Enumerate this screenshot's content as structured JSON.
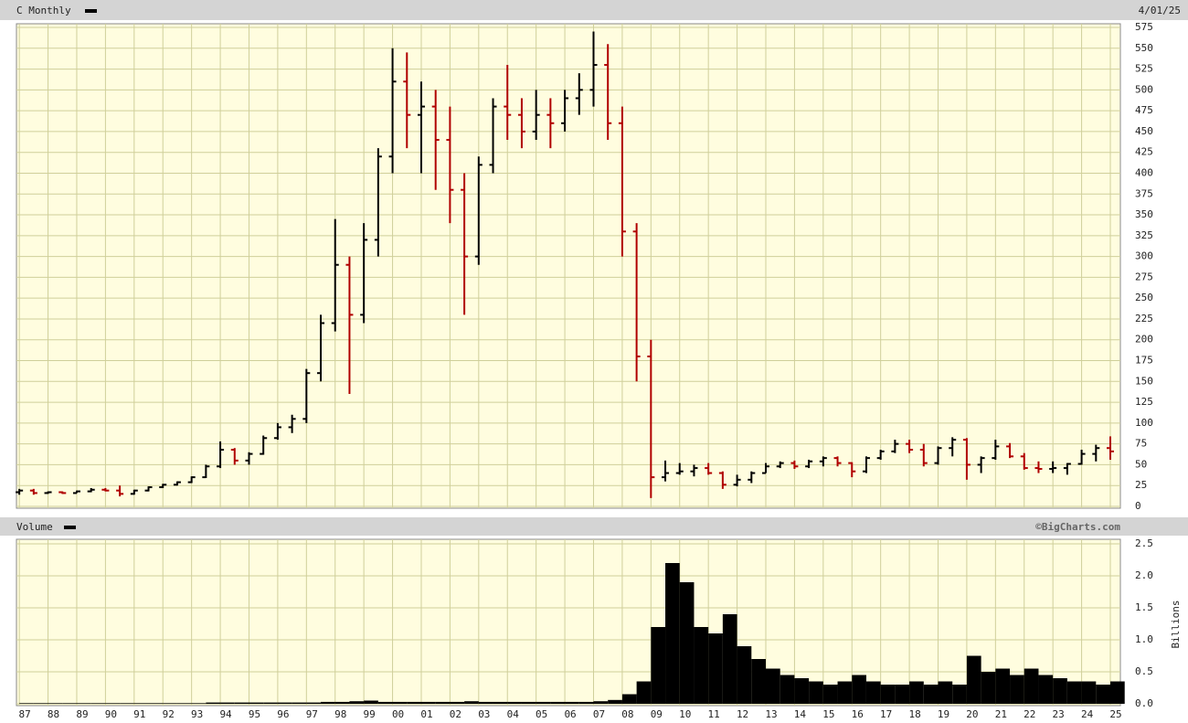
{
  "chart_data": [
    {
      "type": "ohlc",
      "title": "C Monthly",
      "date": "4/01/25",
      "up_color": "#000000",
      "down_color": "#b00000",
      "grid": true,
      "x": [
        1987,
        1987.5,
        1988,
        1988.5,
        1989,
        1989.5,
        1990,
        1990.5,
        1991,
        1991.5,
        1992,
        1992.5,
        1993,
        1993.5,
        1994,
        1994.5,
        1995,
        1995.5,
        1996,
        1996.5,
        1997,
        1997.5,
        1998,
        1998.5,
        1999,
        1999.5,
        2000,
        2000.5,
        2001,
        2001.5,
        2002,
        2002.5,
        2003,
        2003.5,
        2004,
        2004.5,
        2005,
        2005.5,
        2006,
        2006.5,
        2007,
        2007.5,
        2008,
        2008.5,
        2009,
        2009.5,
        2010,
        2010.5,
        2011,
        2011.5,
        2012,
        2012.5,
        2013,
        2013.5,
        2014,
        2014.5,
        2015,
        2015.5,
        2016,
        2016.5,
        2017,
        2017.5,
        2018,
        2018.5,
        2019,
        2019.5,
        2020,
        2020.5,
        2021,
        2021.5,
        2022,
        2022.5,
        2023,
        2023.5,
        2024,
        2024.5,
        2025
      ],
      "open": [
        17,
        19,
        16,
        17,
        16,
        18,
        20,
        19,
        15,
        19,
        23,
        26,
        29,
        35,
        48,
        68,
        55,
        63,
        82,
        95,
        105,
        160,
        220,
        290,
        230,
        320,
        420,
        510,
        470,
        480,
        440,
        380,
        300,
        410,
        480,
        470,
        450,
        470,
        460,
        490,
        500,
        530,
        460,
        330,
        180,
        35,
        40,
        42,
        46,
        40,
        26,
        32,
        40,
        48,
        52,
        48,
        54,
        58,
        52,
        42,
        58,
        66,
        75,
        68,
        52,
        70,
        80,
        50,
        58,
        72,
        60,
        46,
        45,
        46,
        51,
        63,
        70
      ],
      "high": [
        21,
        21,
        18,
        18,
        19,
        22,
        22,
        25,
        20,
        24,
        27,
        30,
        36,
        50,
        78,
        70,
        65,
        85,
        100,
        110,
        165,
        230,
        345,
        300,
        340,
        430,
        550,
        545,
        510,
        500,
        480,
        400,
        420,
        490,
        530,
        490,
        500,
        490,
        500,
        520,
        570,
        555,
        480,
        340,
        200,
        55,
        52,
        50,
        52,
        42,
        38,
        42,
        52,
        54,
        55,
        56,
        60,
        60,
        53,
        60,
        68,
        80,
        80,
        75,
        72,
        83,
        82,
        60,
        80,
        76,
        64,
        54,
        54,
        52,
        68,
        74,
        84
      ],
      "low": [
        14,
        14,
        15,
        15,
        16,
        17,
        18,
        12,
        14,
        18,
        22,
        25,
        28,
        34,
        46,
        50,
        50,
        62,
        80,
        88,
        100,
        150,
        210,
        135,
        220,
        300,
        400,
        430,
        400,
        380,
        340,
        230,
        290,
        400,
        440,
        430,
        440,
        430,
        450,
        470,
        480,
        440,
        300,
        150,
        10,
        30,
        38,
        36,
        38,
        21,
        24,
        28,
        40,
        46,
        45,
        46,
        48,
        48,
        35,
        40,
        56,
        64,
        64,
        48,
        50,
        60,
        32,
        40,
        56,
        58,
        44,
        40,
        40,
        38,
        50,
        54,
        56
      ],
      "close": [
        19,
        16,
        17,
        16,
        18,
        20,
        19,
        15,
        19,
        23,
        26,
        29,
        35,
        48,
        68,
        55,
        63,
        82,
        95,
        105,
        160,
        220,
        290,
        230,
        320,
        420,
        510,
        470,
        480,
        440,
        380,
        300,
        410,
        480,
        470,
        450,
        470,
        460,
        490,
        500,
        530,
        460,
        330,
        180,
        35,
        40,
        42,
        46,
        40,
        26,
        32,
        40,
        48,
        52,
        48,
        54,
        58,
        52,
        42,
        58,
        66,
        75,
        68,
        52,
        70,
        80,
        50,
        58,
        72,
        60,
        46,
        45,
        46,
        51,
        63,
        70,
        66
      ],
      "xlim": [
        1986.9,
        2025.35
      ],
      "xticks": [
        1987,
        1988,
        1989,
        1990,
        1991,
        1992,
        1993,
        1994,
        1995,
        1996,
        1997,
        1998,
        1999,
        2000,
        2001,
        2002,
        2003,
        2004,
        2005,
        2006,
        2007,
        2008,
        2009,
        2010,
        2011,
        2012,
        2013,
        2014,
        2015,
        2016,
        2017,
        2018,
        2019,
        2020,
        2021,
        2022,
        2023,
        2024,
        2025
      ],
      "ylim": [
        0,
        575
      ],
      "yticks": [
        0,
        25,
        50,
        75,
        100,
        125,
        150,
        175,
        200,
        225,
        250,
        275,
        300,
        325,
        350,
        375,
        400,
        425,
        450,
        475,
        500,
        525,
        550,
        575
      ]
    },
    {
      "type": "bar",
      "title": "Volume",
      "credit": "©BigCharts.com",
      "ylabel": "Billions",
      "color": "#000000",
      "grid": true,
      "x": [
        1987,
        1987.5,
        1988,
        1988.5,
        1989,
        1989.5,
        1990,
        1990.5,
        1991,
        1991.5,
        1992,
        1992.5,
        1993,
        1993.5,
        1994,
        1994.5,
        1995,
        1995.5,
        1996,
        1996.5,
        1997,
        1997.5,
        1998,
        1998.5,
        1999,
        1999.5,
        2000,
        2000.5,
        2001,
        2001.5,
        2002,
        2002.5,
        2003,
        2003.5,
        2004,
        2004.5,
        2005,
        2005.5,
        2006,
        2006.5,
        2007,
        2007.5,
        2008,
        2008.5,
        2009,
        2009.5,
        2010,
        2010.5,
        2011,
        2011.5,
        2012,
        2012.5,
        2013,
        2013.5,
        2014,
        2014.5,
        2015,
        2015.5,
        2016,
        2016.5,
        2017,
        2017.5,
        2018,
        2018.5,
        2019,
        2019.5,
        2020,
        2020.5,
        2021,
        2021.5,
        2022,
        2022.5,
        2023,
        2023.5,
        2024,
        2024.5,
        2025
      ],
      "values": [
        0.01,
        0.01,
        0.01,
        0.01,
        0.01,
        0.01,
        0.01,
        0.01,
        0.01,
        0.01,
        0.01,
        0.01,
        0.01,
        0.02,
        0.02,
        0.02,
        0.02,
        0.02,
        0.02,
        0.02,
        0.02,
        0.03,
        0.03,
        0.04,
        0.05,
        0.03,
        0.03,
        0.03,
        0.03,
        0.03,
        0.03,
        0.04,
        0.03,
        0.03,
        0.03,
        0.03,
        0.03,
        0.03,
        0.03,
        0.03,
        0.04,
        0.06,
        0.15,
        0.35,
        1.2,
        2.2,
        1.9,
        1.2,
        1.1,
        1.4,
        0.9,
        0.7,
        0.55,
        0.45,
        0.4,
        0.35,
        0.3,
        0.35,
        0.45,
        0.35,
        0.3,
        0.3,
        0.35,
        0.3,
        0.35,
        0.3,
        0.75,
        0.5,
        0.55,
        0.45,
        0.55,
        0.45,
        0.4,
        0.35,
        0.35,
        0.3,
        0.35
      ],
      "xlim": [
        1986.9,
        2025.35
      ],
      "xticks": [
        {
          "value": 1987,
          "label": "87"
        },
        {
          "value": 1988,
          "label": "88"
        },
        {
          "value": 1989,
          "label": "89"
        },
        {
          "value": 1990,
          "label": "90"
        },
        {
          "value": 1991,
          "label": "91"
        },
        {
          "value": 1992,
          "label": "92"
        },
        {
          "value": 1993,
          "label": "93"
        },
        {
          "value": 1994,
          "label": "94"
        },
        {
          "value": 1995,
          "label": "95"
        },
        {
          "value": 1996,
          "label": "96"
        },
        {
          "value": 1997,
          "label": "97"
        },
        {
          "value": 1998,
          "label": "98"
        },
        {
          "value": 1999,
          "label": "99"
        },
        {
          "value": 2000,
          "label": "00"
        },
        {
          "value": 2001,
          "label": "01"
        },
        {
          "value": 2002,
          "label": "02"
        },
        {
          "value": 2003,
          "label": "03"
        },
        {
          "value": 2004,
          "label": "04"
        },
        {
          "value": 2005,
          "label": "05"
        },
        {
          "value": 2006,
          "label": "06"
        },
        {
          "value": 2007,
          "label": "07"
        },
        {
          "value": 2008,
          "label": "08"
        },
        {
          "value": 2009,
          "label": "09"
        },
        {
          "value": 2010,
          "label": "10"
        },
        {
          "value": 2011,
          "label": "11"
        },
        {
          "value": 2012,
          "label": "12"
        },
        {
          "value": 2013,
          "label": "13"
        },
        {
          "value": 2014,
          "label": "14"
        },
        {
          "value": 2015,
          "label": "15"
        },
        {
          "value": 2016,
          "label": "16"
        },
        {
          "value": 2017,
          "label": "17"
        },
        {
          "value": 2018,
          "label": "18"
        },
        {
          "value": 2019,
          "label": "19"
        },
        {
          "value": 2020,
          "label": "20"
        },
        {
          "value": 2021,
          "label": "21"
        },
        {
          "value": 2022,
          "label": "22"
        },
        {
          "value": 2023,
          "label": "23"
        },
        {
          "value": 2024,
          "label": "24"
        },
        {
          "value": 2025,
          "label": "25"
        }
      ],
      "ylim": [
        0,
        2.5
      ],
      "yticks": [
        {
          "value": 0,
          "label": "0.0"
        },
        {
          "value": 0.5,
          "label": "0.5"
        },
        {
          "value": 1,
          "label": "1.0"
        },
        {
          "value": 1.5,
          "label": "1.5"
        },
        {
          "value": 2,
          "label": "2.0"
        },
        {
          "value": 2.5,
          "label": "2.5"
        }
      ]
    }
  ]
}
